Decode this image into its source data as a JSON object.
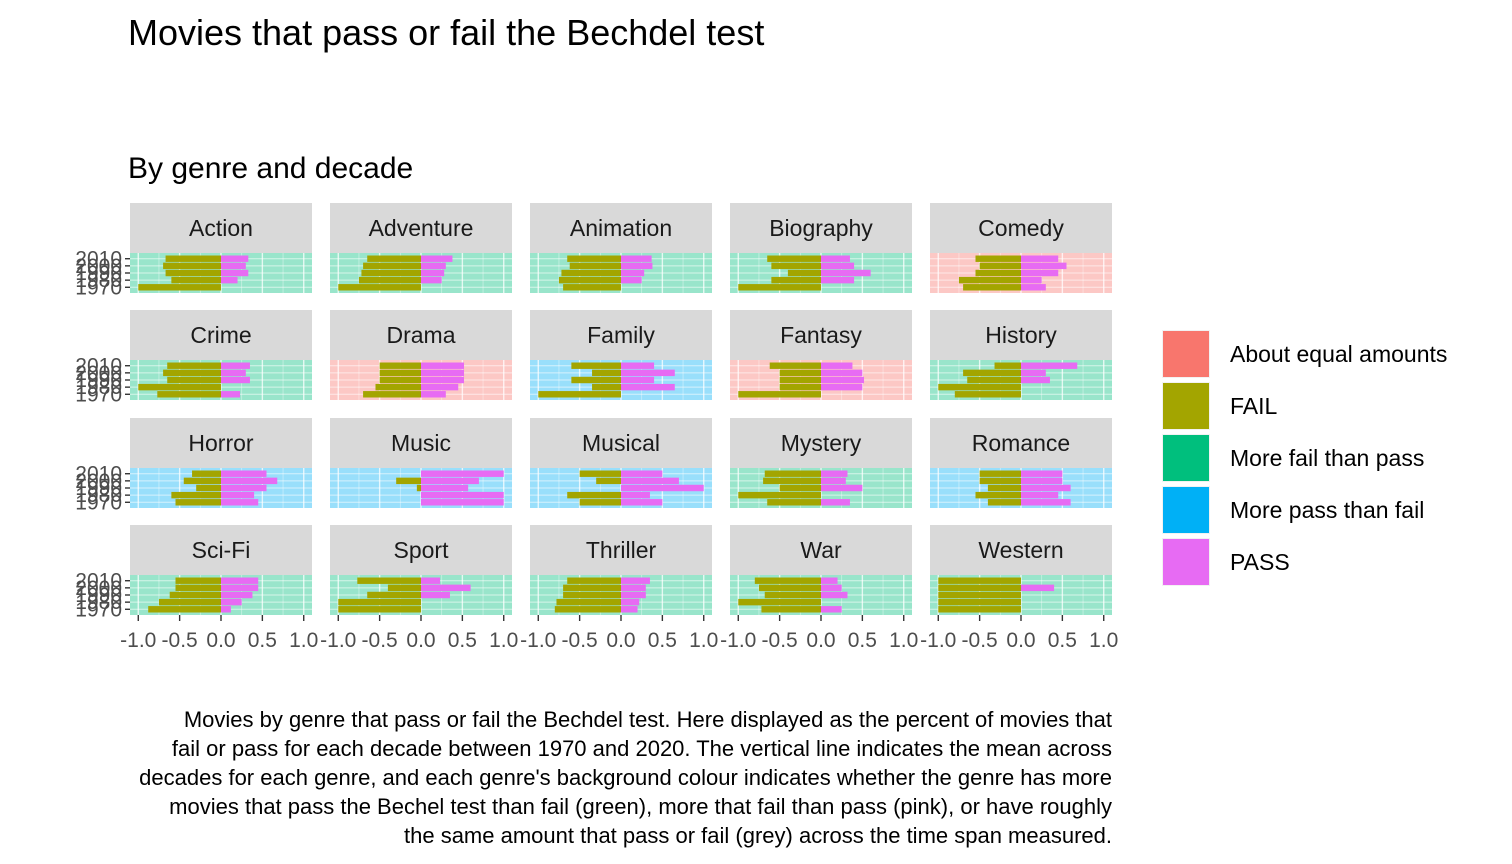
{
  "chart_data": {
    "type": "bar",
    "orientation": "horizontal",
    "title": "Movies that pass or fail the Bechdel test",
    "subtitle": "By genre and decade",
    "caption_lines": [
      "Movies by genre that pass or fail the Bechdel test. Here displayed as the percent of movies that",
      "fail or pass for each decade between 1970 and 2020. The vertical line indicates the mean across",
      "decades for each genre, and each genre's background colour indicates whether the genre has more",
      "movies that pass the Bechel test than fail (green), more that fail than pass (pink), or have roughly",
      "the same amount that pass or fail (grey) across the time span measured."
    ],
    "xlim": [
      -1.0,
      1.0
    ],
    "x_ticks": [
      "-1.0",
      "-0.5",
      "0.0",
      "0.5",
      "1.0"
    ],
    "y_tick_labels": [
      "2010",
      "2000",
      "1990",
      "1980",
      "1970"
    ],
    "decades": [
      2010,
      2000,
      1990,
      1980,
      1970
    ],
    "colors": {
      "About equal amounts": "#F8766D",
      "FAIL": "#A3A500",
      "More fail than pass": "#00BF7D",
      "More pass than fail": "#00B0F6",
      "PASS": "#E76BF3"
    },
    "legend": [
      {
        "label": "About equal amounts",
        "color": "#F8766D"
      },
      {
        "label": "FAIL",
        "color": "#A3A500"
      },
      {
        "label": "More fail than pass",
        "color": "#00BF7D"
      },
      {
        "label": "More pass than fail",
        "color": "#00B0F6"
      },
      {
        "label": "PASS",
        "color": "#E76BF3"
      }
    ],
    "legend_position": "right",
    "panels": [
      {
        "genre": "Action",
        "category": "More fail than pass",
        "fail": [
          -0.67,
          -0.7,
          -0.67,
          -0.6,
          -1.0
        ],
        "pass": [
          0.33,
          0.3,
          0.33,
          0.2,
          0.0
        ]
      },
      {
        "genre": "Adventure",
        "category": "More fail than pass",
        "fail": [
          -0.65,
          -0.7,
          -0.72,
          -0.75,
          -1.0
        ],
        "pass": [
          0.38,
          0.3,
          0.28,
          0.25,
          0.0
        ]
      },
      {
        "genre": "Animation",
        "category": "More fail than pass",
        "fail": [
          -0.65,
          -0.62,
          -0.72,
          -0.75,
          -0.7
        ],
        "pass": [
          0.37,
          0.38,
          0.28,
          0.25,
          0.0
        ]
      },
      {
        "genre": "Biography",
        "category": "More fail than pass",
        "fail": [
          -0.65,
          -0.6,
          -0.4,
          -0.6,
          -1.0
        ],
        "pass": [
          0.35,
          0.4,
          0.6,
          0.4,
          0.0
        ]
      },
      {
        "genre": "Comedy",
        "category": "About equal amounts",
        "fail": [
          -0.55,
          -0.5,
          -0.55,
          -0.75,
          -0.7
        ],
        "pass": [
          0.45,
          0.55,
          0.45,
          0.25,
          0.3
        ]
      },
      {
        "genre": "Crime",
        "category": "More fail than pass",
        "fail": [
          -0.65,
          -0.7,
          -0.65,
          -1.0,
          -0.77
        ],
        "pass": [
          0.35,
          0.3,
          0.35,
          0.0,
          0.23
        ]
      },
      {
        "genre": "Drama",
        "category": "About equal amounts",
        "fail": [
          -0.5,
          -0.5,
          -0.5,
          -0.55,
          -0.7
        ],
        "pass": [
          0.52,
          0.52,
          0.52,
          0.45,
          0.3
        ]
      },
      {
        "genre": "Family",
        "category": "More pass than fail",
        "fail": [
          -0.6,
          -0.35,
          -0.6,
          -0.35,
          -1.0
        ],
        "pass": [
          0.4,
          0.65,
          0.4,
          0.65,
          0.0
        ]
      },
      {
        "genre": "Fantasy",
        "category": "About equal amounts",
        "fail": [
          -0.62,
          -0.5,
          -0.5,
          -0.5,
          -1.0
        ],
        "pass": [
          0.38,
          0.5,
          0.52,
          0.5,
          0.0
        ]
      },
      {
        "genre": "History",
        "category": "More fail than pass",
        "fail": [
          -0.32,
          -0.7,
          -0.65,
          -1.0,
          -0.8
        ],
        "pass": [
          0.68,
          0.3,
          0.35,
          0.0,
          0.0
        ]
      },
      {
        "genre": "Horror",
        "category": "More pass than fail",
        "fail": [
          -0.35,
          -0.45,
          -0.3,
          -0.6,
          -0.55
        ],
        "pass": [
          0.55,
          0.68,
          0.55,
          0.4,
          0.45
        ]
      },
      {
        "genre": "Music",
        "category": "More pass than fail",
        "fail": [
          0.0,
          -0.3,
          -0.05,
          0.0,
          0.0
        ],
        "pass": [
          1.0,
          0.7,
          0.57,
          1.0,
          1.0
        ]
      },
      {
        "genre": "Musical",
        "category": "More pass than fail",
        "fail": [
          -0.5,
          -0.3,
          0.0,
          -0.65,
          -0.5
        ],
        "pass": [
          0.5,
          0.7,
          1.0,
          0.35,
          0.5
        ]
      },
      {
        "genre": "Mystery",
        "category": "More fail than pass",
        "fail": [
          -0.68,
          -0.7,
          -0.5,
          -1.0,
          -0.65
        ],
        "pass": [
          0.32,
          0.3,
          0.5,
          0.0,
          0.35
        ]
      },
      {
        "genre": "Romance",
        "category": "More pass than fail",
        "fail": [
          -0.5,
          -0.5,
          -0.4,
          -0.55,
          -0.4
        ],
        "pass": [
          0.5,
          0.5,
          0.6,
          0.45,
          0.6
        ]
      },
      {
        "genre": "Sci-Fi",
        "category": "More fail than pass",
        "fail": [
          -0.55,
          -0.55,
          -0.62,
          -0.75,
          -0.88
        ],
        "pass": [
          0.45,
          0.45,
          0.38,
          0.25,
          0.12
        ]
      },
      {
        "genre": "Sport",
        "category": "More fail than pass",
        "fail": [
          -0.77,
          -0.4,
          -0.65,
          -1.0,
          -1.0
        ],
        "pass": [
          0.23,
          0.6,
          0.35,
          0.0,
          0.0
        ]
      },
      {
        "genre": "Thriller",
        "category": "More fail than pass",
        "fail": [
          -0.65,
          -0.7,
          -0.7,
          -0.78,
          -0.8
        ],
        "pass": [
          0.35,
          0.3,
          0.3,
          0.22,
          0.2
        ]
      },
      {
        "genre": "War",
        "category": "More fail than pass",
        "fail": [
          -0.8,
          -0.75,
          -0.68,
          -1.0,
          -0.72
        ],
        "pass": [
          0.2,
          0.25,
          0.32,
          0.0,
          0.25
        ]
      },
      {
        "genre": "Western",
        "category": "More fail than pass",
        "fail": [
          -1.0,
          -1.0,
          -1.0,
          -1.0,
          -1.0
        ],
        "pass": [
          0.0,
          0.4,
          0.0,
          0.0,
          0.0
        ]
      }
    ]
  }
}
